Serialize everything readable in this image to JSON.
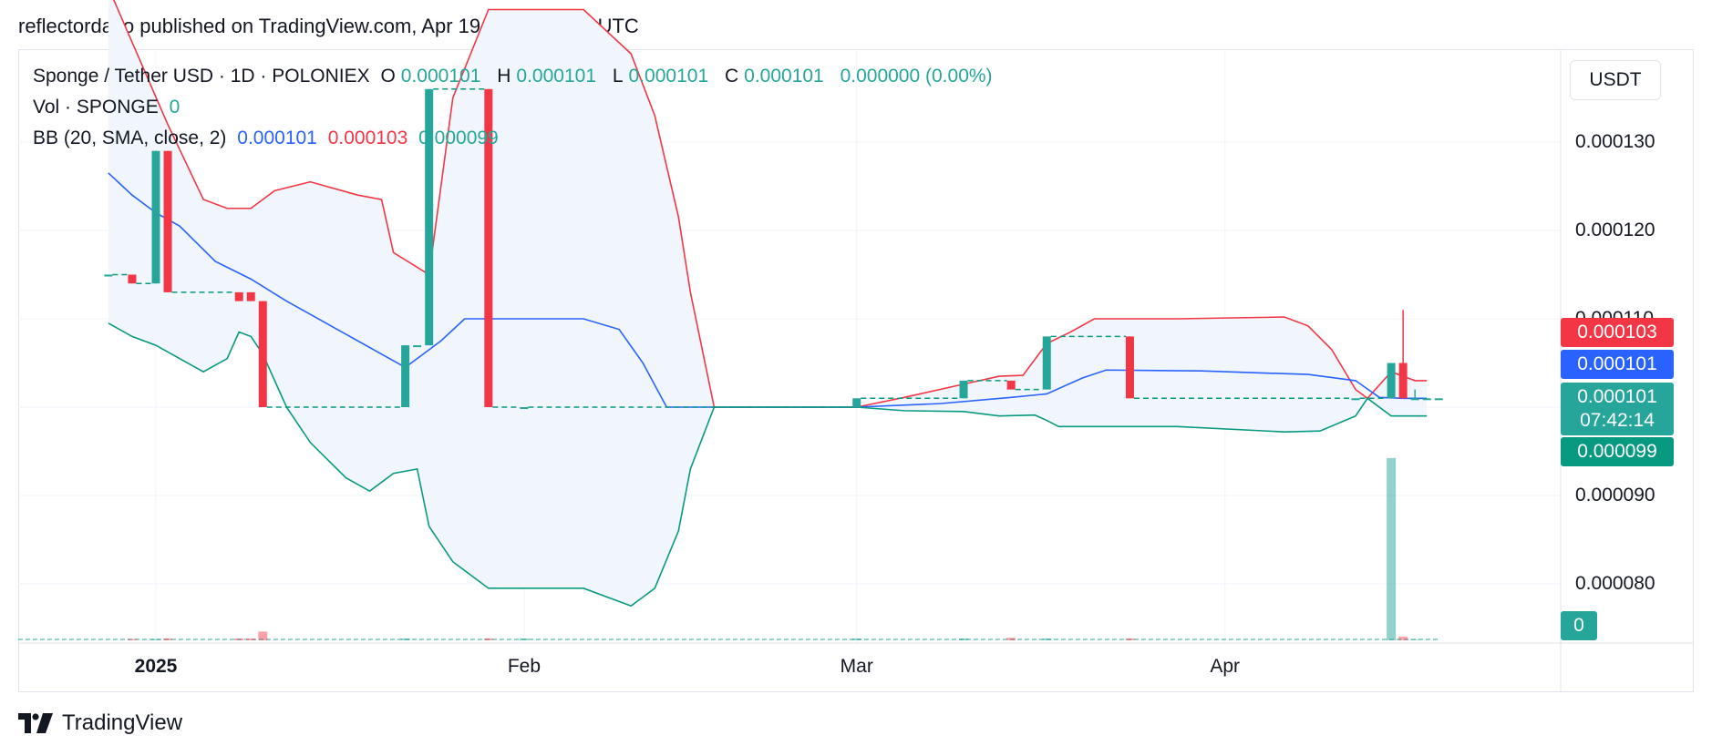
{
  "header": {
    "published": "reflectordayo published on TradingView.com, Apr 19, 2025 16:17 UTC"
  },
  "legend": {
    "symbol": "Sponge / Tether USD · 1D · POLONIEX",
    "o_label": "O",
    "o": "0.000101",
    "h_label": "H",
    "h": "0.000101",
    "l_label": "L",
    "l": "0.000101",
    "c_label": "C",
    "c": "0.000101",
    "change": "0.000000 (0.00%)",
    "vol_label": "Vol · SPONGE",
    "vol": "0",
    "bb_label": "BB (20, SMA, close, 2)",
    "bb_basis": "0.000101",
    "bb_upper": "0.000103",
    "bb_lower": "0.000099"
  },
  "currency": "USDT",
  "price_labels": {
    "upper": "0.000103",
    "basis": "0.000101",
    "close": "0.000101",
    "countdown": "07:42:14",
    "lower": "0.000099",
    "volume": "0"
  },
  "colors": {
    "up": "#26a69a",
    "down": "#f23645",
    "basis": "#2962ff",
    "band_fill": "#f0f6fc"
  },
  "footer": {
    "brand": "TradingView"
  },
  "chart_data": {
    "type": "candlestick",
    "symbol": "SPONGE/USDT",
    "y_ticks": [
      "0.000130",
      "0.000120",
      "0.000110",
      "0.000090",
      "0.000080"
    ],
    "x_ticks": [
      {
        "label": "2025",
        "date": "2025-01-01",
        "bold": true
      },
      {
        "label": "Feb",
        "date": "2025-02-01",
        "bold": false
      },
      {
        "label": "Mar",
        "date": "2025-03-01",
        "bold": false
      },
      {
        "label": "Apr",
        "date": "2025-04-01",
        "bold": false
      }
    ],
    "ylim": [
      7.35e-05,
      0.000134
    ],
    "candles": [
      {
        "date": "2024-12-28",
        "o": 0.000115,
        "h": 0.000115,
        "l": 0.000115,
        "c": 0.000115,
        "v": 0
      },
      {
        "date": "2024-12-30",
        "o": 0.000115,
        "h": 0.000115,
        "l": 0.000114,
        "c": 0.000114,
        "v": 0.2
      },
      {
        "date": "2025-01-01",
        "o": 0.000114,
        "h": 0.000129,
        "l": 0.000114,
        "c": 0.000129,
        "v": 0.2
      },
      {
        "date": "2025-01-02",
        "o": 0.000129,
        "h": 0.000129,
        "l": 0.000113,
        "c": 0.000113,
        "v": 0.3
      },
      {
        "date": "2025-01-08",
        "o": 0.000113,
        "h": 0.000113,
        "l": 0.000112,
        "c": 0.000112,
        "v": 0.3
      },
      {
        "date": "2025-01-09",
        "o": 0.000113,
        "h": 0.000113,
        "l": 0.000112,
        "c": 0.000112,
        "v": 0.3
      },
      {
        "date": "2025-01-10",
        "o": 0.000112,
        "h": 0.000112,
        "l": 0.0001,
        "c": 0.0001,
        "v": 1.4
      },
      {
        "date": "2025-01-22",
        "o": 0.0001,
        "h": 0.000107,
        "l": 0.0001,
        "c": 0.000107,
        "v": 0.3
      },
      {
        "date": "2025-01-23",
        "o": 0.000107,
        "h": 0.000107,
        "l": 0.000107,
        "c": 0.000107,
        "v": 0
      },
      {
        "date": "2025-01-24",
        "o": 0.000107,
        "h": 0.000136,
        "l": 0.000107,
        "c": 0.000136,
        "v": 0
      },
      {
        "date": "2025-01-29",
        "o": 0.000136,
        "h": 0.000136,
        "l": 0.0001,
        "c": 0.0001,
        "v": 0.3
      },
      {
        "date": "2025-02-01",
        "o": 0.0001,
        "h": 0.0001,
        "l": 0.0001,
        "c": 0.0001,
        "v": 0.3
      },
      {
        "date": "2025-03-01",
        "o": 0.0001,
        "h": 0.000101,
        "l": 0.0001,
        "c": 0.000101,
        "v": 0.3
      },
      {
        "date": "2025-03-10",
        "o": 0.000101,
        "h": 0.000103,
        "l": 0.000101,
        "c": 0.000103,
        "v": 0.3
      },
      {
        "date": "2025-03-14",
        "o": 0.000103,
        "h": 0.000103,
        "l": 0.000102,
        "c": 0.000102,
        "v": 0.4
      },
      {
        "date": "2025-03-17",
        "o": 0.000102,
        "h": 0.000108,
        "l": 0.000102,
        "c": 0.000108,
        "v": 0.3
      },
      {
        "date": "2025-03-24",
        "o": 0.000108,
        "h": 0.000108,
        "l": 0.000101,
        "c": 0.000101,
        "v": 0.3
      },
      {
        "date": "2025-04-12",
        "o": 0.000101,
        "h": 0.000101,
        "l": 0.000101,
        "c": 0.000101,
        "v": 0
      },
      {
        "date": "2025-04-15",
        "o": 0.000101,
        "h": 0.000105,
        "l": 0.000101,
        "c": 0.000105,
        "v": 29
      },
      {
        "date": "2025-04-16",
        "o": 0.000105,
        "h": 0.000111,
        "l": 0.000101,
        "c": 0.000101,
        "v": 0.6
      },
      {
        "date": "2025-04-17",
        "o": 0.000101,
        "h": 0.000102,
        "l": 0.000101,
        "c": 0.000101,
        "v": 0.1
      },
      {
        "date": "2025-04-18",
        "o": 0.000101,
        "h": 0.000101,
        "l": 0.000101,
        "c": 0.000101,
        "v": 0
      },
      {
        "date": "2025-04-19",
        "o": 0.000101,
        "h": 0.000101,
        "l": 0.000101,
        "c": 0.000101,
        "v": 0
      }
    ],
    "bollinger": {
      "length": 20,
      "ma_type": "SMA",
      "source": "close",
      "mult": 2,
      "upper": [
        [
          "2024-12-28",
          0.0001475
        ],
        [
          "2025-01-02",
          0.000132
        ],
        [
          "2025-01-05",
          0.0001235
        ],
        [
          "2025-01-07",
          0.0001225
        ],
        [
          "2025-01-09",
          0.0001225
        ],
        [
          "2025-01-11",
          0.0001245
        ],
        [
          "2025-01-14",
          0.0001255
        ],
        [
          "2025-01-18",
          0.000124
        ],
        [
          "2025-01-20",
          0.0001235
        ],
        [
          "2025-01-21",
          0.0001175
        ],
        [
          "2025-01-24",
          0.000115
        ],
        [
          "2025-01-26",
          0.000135
        ],
        [
          "2025-01-29",
          0.000145
        ],
        [
          "2025-02-06",
          0.000145
        ],
        [
          "2025-02-10",
          0.00014
        ],
        [
          "2025-02-12",
          0.000133
        ],
        [
          "2025-02-14",
          0.0001215
        ],
        [
          "2025-02-15",
          0.000113
        ],
        [
          "2025-02-17",
          0.0001
        ],
        [
          "2025-03-01",
          0.0001
        ],
        [
          "2025-03-05",
          0.0001011
        ],
        [
          "2025-03-10",
          0.0001026
        ],
        [
          "2025-03-13",
          0.0001035
        ],
        [
          "2025-03-15",
          0.0001036
        ],
        [
          "2025-03-17",
          0.0001072
        ],
        [
          "2025-03-19",
          0.0001085
        ],
        [
          "2025-03-21",
          0.00011
        ],
        [
          "2025-03-28",
          0.00011
        ],
        [
          "2025-04-06",
          0.0001102
        ],
        [
          "2025-04-08",
          0.0001092
        ],
        [
          "2025-04-10",
          0.0001065
        ],
        [
          "2025-04-12",
          0.000102
        ],
        [
          "2025-04-13",
          0.000101
        ],
        [
          "2025-04-15",
          0.000104
        ],
        [
          "2025-04-17",
          0.000103
        ],
        [
          "2025-04-18",
          0.000103
        ]
      ],
      "basis": [
        [
          "2024-12-28",
          0.0001265
        ],
        [
          "2024-12-30",
          0.000124
        ],
        [
          "2025-01-01",
          0.000122
        ],
        [
          "2025-01-03",
          0.0001205
        ],
        [
          "2025-01-06",
          0.0001165
        ],
        [
          "2025-01-09",
          0.0001145
        ],
        [
          "2025-01-12",
          0.000112
        ],
        [
          "2025-01-16",
          0.000109
        ],
        [
          "2025-01-20",
          0.000106
        ],
        [
          "2025-01-22",
          0.0001045
        ],
        [
          "2025-01-25",
          0.0001075
        ],
        [
          "2025-01-27",
          0.00011
        ],
        [
          "2025-02-06",
          0.00011
        ],
        [
          "2025-02-09",
          0.0001088
        ],
        [
          "2025-02-11",
          0.000105
        ],
        [
          "2025-02-13",
          0.0001
        ],
        [
          "2025-03-01",
          0.0001
        ],
        [
          "2025-03-08",
          0.0001004
        ],
        [
          "2025-03-14",
          0.0001011
        ],
        [
          "2025-03-17",
          0.0001015
        ],
        [
          "2025-03-20",
          0.0001033
        ],
        [
          "2025-03-22",
          0.0001042
        ],
        [
          "2025-03-30",
          0.0001041
        ],
        [
          "2025-04-08",
          0.0001037
        ],
        [
          "2025-04-12",
          0.000103
        ],
        [
          "2025-04-14",
          0.0001011
        ],
        [
          "2025-04-16",
          0.000101
        ],
        [
          "2025-04-18",
          0.000101
        ]
      ],
      "lower": [
        [
          "2024-12-28",
          0.0001095
        ],
        [
          "2024-12-30",
          0.000108
        ],
        [
          "2025-01-01",
          0.000107
        ],
        [
          "2025-01-03",
          0.0001055
        ],
        [
          "2025-01-05",
          0.000104
        ],
        [
          "2025-01-07",
          0.0001055
        ],
        [
          "2025-01-08",
          0.0001085
        ],
        [
          "2025-01-09",
          0.000108
        ],
        [
          "2025-01-10",
          0.000106
        ],
        [
          "2025-01-12",
          0.0001
        ],
        [
          "2025-01-14",
          9.6e-05
        ],
        [
          "2025-01-17",
          9.2e-05
        ],
        [
          "2025-01-19",
          9.05e-05
        ],
        [
          "2025-01-21",
          9.25e-05
        ],
        [
          "2025-01-23",
          9.3e-05
        ],
        [
          "2025-01-24",
          8.65e-05
        ],
        [
          "2025-01-26",
          8.25e-05
        ],
        [
          "2025-01-29",
          7.95e-05
        ],
        [
          "2025-02-06",
          7.95e-05
        ],
        [
          "2025-02-10",
          7.75e-05
        ],
        [
          "2025-02-12",
          7.95e-05
        ],
        [
          "2025-02-14",
          8.6e-05
        ],
        [
          "2025-02-15",
          9.3e-05
        ],
        [
          "2025-02-17",
          0.0001
        ],
        [
          "2025-03-01",
          0.0001
        ],
        [
          "2025-03-05",
          9.96e-05
        ],
        [
          "2025-03-10",
          9.95e-05
        ],
        [
          "2025-03-13",
          9.9e-05
        ],
        [
          "2025-03-16",
          9.91e-05
        ],
        [
          "2025-03-17",
          9.85e-05
        ],
        [
          "2025-03-18",
          9.78e-05
        ],
        [
          "2025-03-21",
          9.78e-05
        ],
        [
          "2025-03-28",
          9.78e-05
        ],
        [
          "2025-04-06",
          9.72e-05
        ],
        [
          "2025-04-09",
          9.73e-05
        ],
        [
          "2025-04-12",
          9.9e-05
        ],
        [
          "2025-04-13",
          0.000101
        ],
        [
          "2025-04-15",
          9.9e-05
        ],
        [
          "2025-04-18",
          9.9e-05
        ]
      ]
    }
  }
}
